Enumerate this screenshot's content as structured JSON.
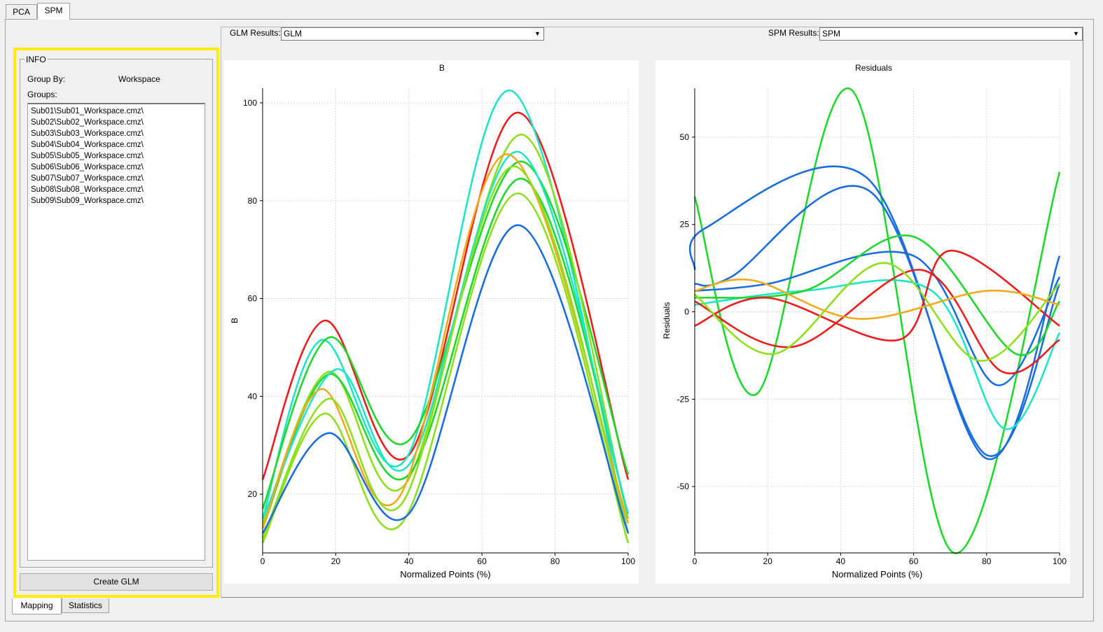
{
  "top_tabs": [
    {
      "label": "PCA"
    },
    {
      "label": "SPM"
    }
  ],
  "bottom_tabs": [
    {
      "label": "Mapping"
    },
    {
      "label": "Statistics"
    }
  ],
  "glm": {
    "label": "GLM Results:",
    "value": "GLM"
  },
  "spm": {
    "label": "SPM Results:",
    "value": "SPM"
  },
  "info": {
    "title": "INFO",
    "group_by_label": "Group By:",
    "group_by_value": "Workspace",
    "groups_label": "Groups:",
    "groups": [
      "Sub01\\Sub01_Workspace.cmz\\",
      "Sub02\\Sub02_Workspace.cmz\\",
      "Sub03\\Sub03_Workspace.cmz\\",
      "Sub04\\Sub04_Workspace.cmz\\",
      "Sub05\\Sub05_Workspace.cmz\\",
      "Sub06\\Sub06_Workspace.cmz\\",
      "Sub07\\Sub07_Workspace.cmz\\",
      "Sub08\\Sub08_Workspace.cmz\\",
      "Sub09\\Sub09_Workspace.cmz\\"
    ],
    "create_button": "Create GLM"
  },
  "colors": {
    "highlight": "#ffee00",
    "red": "#ee1c1c",
    "orange": "#f4a81c",
    "lime": "#8ee01c",
    "green": "#1ed82c",
    "cyan": "#1ee6c6",
    "teal": "#16e0c0",
    "blue": "#1a6ee0"
  },
  "chart_data": [
    {
      "type": "line",
      "title": "B",
      "xlabel": "Normalized Points (%)",
      "ylabel": "B",
      "xlim": [
        0,
        100
      ],
      "ylim": [
        8,
        103
      ],
      "xticks": [
        0,
        20,
        40,
        60,
        80,
        100
      ],
      "yticks": [
        20,
        40,
        60,
        80,
        100
      ],
      "grid": true,
      "series": [
        {
          "color": "#ee1c1c",
          "points": [
            [
              0,
              23
            ],
            [
              17,
              55.5
            ],
            [
              40,
              28
            ],
            [
              70,
              98
            ],
            [
              100,
              23
            ]
          ]
        },
        {
          "color": "#1ee6c6",
          "points": [
            [
              0,
              15
            ],
            [
              16,
              51.5
            ],
            [
              39,
              27
            ],
            [
              68,
              102.5
            ],
            [
              100,
              12
            ]
          ]
        },
        {
          "color": "#1ed82c",
          "points": [
            [
              0,
              17
            ],
            [
              18,
              52
            ],
            [
              40,
              31
            ],
            [
              71,
              88
            ],
            [
              100,
              24
            ]
          ]
        },
        {
          "color": "#8ee01c",
          "points": [
            [
              0,
              14
            ],
            [
              18,
              45
            ],
            [
              39,
              22
            ],
            [
              71,
              93.5
            ],
            [
              100,
              15
            ]
          ]
        },
        {
          "color": "#1ed82c",
          "points": [
            [
              0,
              13
            ],
            [
              18,
              44.5
            ],
            [
              40,
              24
            ],
            [
              71,
              84.5
            ],
            [
              100,
              16
            ]
          ]
        },
        {
          "color": "#1ee6c6",
          "points": [
            [
              0,
              15
            ],
            [
              20,
              45.5
            ],
            [
              40,
              26
            ],
            [
              70,
              90
            ],
            [
              100,
              16
            ]
          ]
        },
        {
          "color": "#f4a81c",
          "points": [
            [
              0,
              13
            ],
            [
              16,
              41.5
            ],
            [
              37,
              19
            ],
            [
              67,
              89.5
            ],
            [
              100,
              14
            ]
          ]
        },
        {
          "color": "#8ee01c",
          "points": [
            [
              0,
              11
            ],
            [
              18,
              39.5
            ],
            [
              38,
              18
            ],
            [
              69,
              87
            ],
            [
              100,
              12
            ]
          ]
        },
        {
          "color": "#8ee01c",
          "points": [
            [
              0,
              10
            ],
            [
              17,
              36.5
            ],
            [
              38,
              14
            ],
            [
              70,
              81.5
            ],
            [
              100,
              10
            ]
          ]
        },
        {
          "color": "#1a6ee0",
          "points": [
            [
              0,
              12
            ],
            [
              18,
              32.5
            ],
            [
              40,
              16
            ],
            [
              70,
              75
            ],
            [
              100,
              12
            ]
          ]
        }
      ]
    },
    {
      "type": "line",
      "title": "Residuals",
      "xlabel": "Normalized Points (%)",
      "ylabel": "Residuals",
      "xlim": [
        0,
        100
      ],
      "ylim": [
        -69,
        64
      ],
      "xticks": [
        0,
        20,
        40,
        60,
        80,
        100
      ],
      "yticks": [
        -50,
        -25,
        0,
        25,
        50
      ],
      "grid": true,
      "series": [
        {
          "color": "#1ed82c",
          "points": [
            [
              0,
              33
            ],
            [
              17,
              -23.5
            ],
            [
              43,
              63.5
            ],
            [
              71,
              -69
            ],
            [
              100,
              40
            ]
          ]
        },
        {
          "color": "#1a6ee0",
          "points": [
            [
              0,
              12
            ],
            [
              3,
              24
            ],
            [
              47,
              38.5
            ],
            [
              80,
              -42
            ],
            [
              100,
              16
            ]
          ]
        },
        {
          "color": "#1a6ee0",
          "points": [
            [
              0,
              8
            ],
            [
              10,
              10
            ],
            [
              48,
              34.5
            ],
            [
              80,
              -41
            ],
            [
              100,
              8
            ]
          ]
        },
        {
          "color": "#1a6ee0",
          "points": [
            [
              0,
              6
            ],
            [
              20,
              8
            ],
            [
              60,
              16
            ],
            [
              83,
              -21
            ],
            [
              100,
              10
            ]
          ]
        },
        {
          "color": "#1ee6c6",
          "points": [
            [
              0,
              2
            ],
            [
              30,
              6
            ],
            [
              65,
              6
            ],
            [
              85,
              -33.5
            ],
            [
              100,
              -6
            ]
          ]
        },
        {
          "color": "#1ed82c",
          "points": [
            [
              0,
              4
            ],
            [
              30,
              6
            ],
            [
              60,
              21.5
            ],
            [
              88,
              -12
            ],
            [
              100,
              3
            ]
          ]
        },
        {
          "color": "#ee1c1c",
          "points": [
            [
              0,
              3
            ],
            [
              27,
              -10
            ],
            [
              62,
              12
            ],
            [
              84,
              -17
            ],
            [
              100,
              -8
            ]
          ]
        },
        {
          "color": "#ee1c1c",
          "points": [
            [
              0,
              -4
            ],
            [
              20,
              4
            ],
            [
              56,
              -8
            ],
            [
              70,
              17.5
            ],
            [
              100,
              -4
            ]
          ]
        },
        {
          "color": "#8ee01c",
          "points": [
            [
              0,
              5
            ],
            [
              22,
              -12
            ],
            [
              52,
              14
            ],
            [
              78,
              -14
            ],
            [
              100,
              8
            ]
          ]
        },
        {
          "color": "#f4a81c",
          "points": [
            [
              0,
              6
            ],
            [
              16,
              9
            ],
            [
              45,
              -2
            ],
            [
              80,
              6
            ],
            [
              100,
              2
            ]
          ]
        }
      ]
    }
  ]
}
